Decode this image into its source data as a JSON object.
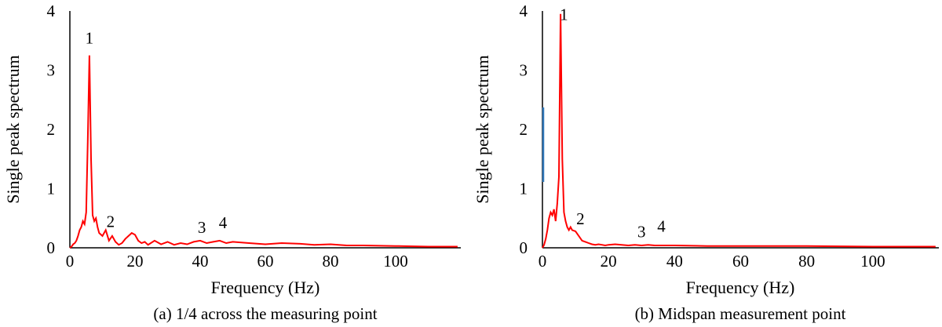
{
  "chart_data": [
    {
      "type": "line",
      "caption": "(a) 1/4 across the measuring point",
      "xlabel": "Frequency (Hz)",
      "ylabel": "Single peak spectrum",
      "xlim": [
        0,
        120
      ],
      "ylim": [
        0,
        4
      ],
      "xticks": [
        "0",
        "20",
        "40",
        "60",
        "80",
        "100"
      ],
      "yticks": [
        "0",
        "1",
        "2",
        "3",
        "4"
      ],
      "line_color": "#ff0000",
      "x": [
        0,
        0.5,
        1,
        1.5,
        2,
        2.5,
        3,
        3.5,
        4,
        4.5,
        5,
        5.5,
        6,
        6.5,
        7,
        7.5,
        8,
        8.5,
        9,
        10,
        11,
        12,
        13,
        14,
        15,
        16,
        17,
        18,
        19,
        20,
        21,
        22,
        23,
        24,
        26,
        28,
        30,
        32,
        34,
        36,
        38,
        40,
        42,
        44,
        46,
        48,
        50,
        55,
        60,
        65,
        70,
        75,
        80,
        85,
        90,
        100,
        110,
        119
      ],
      "y": [
        0.0,
        0.02,
        0.06,
        0.08,
        0.12,
        0.2,
        0.3,
        0.35,
        0.45,
        0.4,
        0.6,
        1.8,
        3.25,
        1.5,
        0.55,
        0.45,
        0.5,
        0.35,
        0.25,
        0.2,
        0.3,
        0.12,
        0.2,
        0.1,
        0.05,
        0.08,
        0.15,
        0.2,
        0.25,
        0.22,
        0.12,
        0.08,
        0.1,
        0.05,
        0.12,
        0.06,
        0.1,
        0.05,
        0.08,
        0.06,
        0.1,
        0.12,
        0.08,
        0.1,
        0.12,
        0.08,
        0.1,
        0.08,
        0.06,
        0.08,
        0.07,
        0.05,
        0.06,
        0.04,
        0.04,
        0.03,
        0.02,
        0.02
      ],
      "annotations": [
        {
          "text": "1",
          "x": 6,
          "y": 3.45
        },
        {
          "text": "2",
          "x": 12.5,
          "y": 0.35
        },
        {
          "text": "3",
          "x": 40.5,
          "y": 0.25
        },
        {
          "text": "4",
          "x": 47,
          "y": 0.33
        }
      ]
    },
    {
      "type": "line",
      "caption": "(b) Midspan measurement point",
      "xlabel": "Frequency (Hz)",
      "ylabel": "Single peak spectrum",
      "xlim": [
        0,
        120
      ],
      "ylim": [
        0,
        4
      ],
      "xticks": [
        "0",
        "20",
        "40",
        "60",
        "80",
        "100"
      ],
      "yticks": [
        "0",
        "1",
        "2",
        "3",
        "4"
      ],
      "line_color": "#ff0000",
      "x": [
        0,
        0.5,
        1,
        1.5,
        2,
        2.5,
        3,
        3.5,
        4,
        4.5,
        5,
        5.5,
        6,
        6.5,
        7,
        7.5,
        8,
        8.5,
        9,
        10,
        11,
        12,
        13,
        14,
        15,
        16,
        17,
        18,
        19,
        20,
        22,
        24,
        26,
        28,
        30,
        32,
        34,
        36,
        40,
        50,
        60,
        80,
        100,
        119
      ],
      "y": [
        0.0,
        0.05,
        0.15,
        0.3,
        0.5,
        0.6,
        0.55,
        0.65,
        0.45,
        0.75,
        1.2,
        3.95,
        1.5,
        0.6,
        0.45,
        0.35,
        0.3,
        0.35,
        0.3,
        0.28,
        0.2,
        0.12,
        0.1,
        0.08,
        0.06,
        0.05,
        0.06,
        0.05,
        0.04,
        0.05,
        0.06,
        0.05,
        0.04,
        0.05,
        0.04,
        0.05,
        0.04,
        0.04,
        0.04,
        0.03,
        0.03,
        0.03,
        0.02,
        0.02
      ],
      "annotations": [
        {
          "text": "1",
          "x": 6.5,
          "y": 3.85
        },
        {
          "text": "2",
          "x": 11.5,
          "y": 0.4
        },
        {
          "text": "3",
          "x": 30,
          "y": 0.18
        },
        {
          "text": "4",
          "x": 36,
          "y": 0.27
        }
      ]
    }
  ]
}
